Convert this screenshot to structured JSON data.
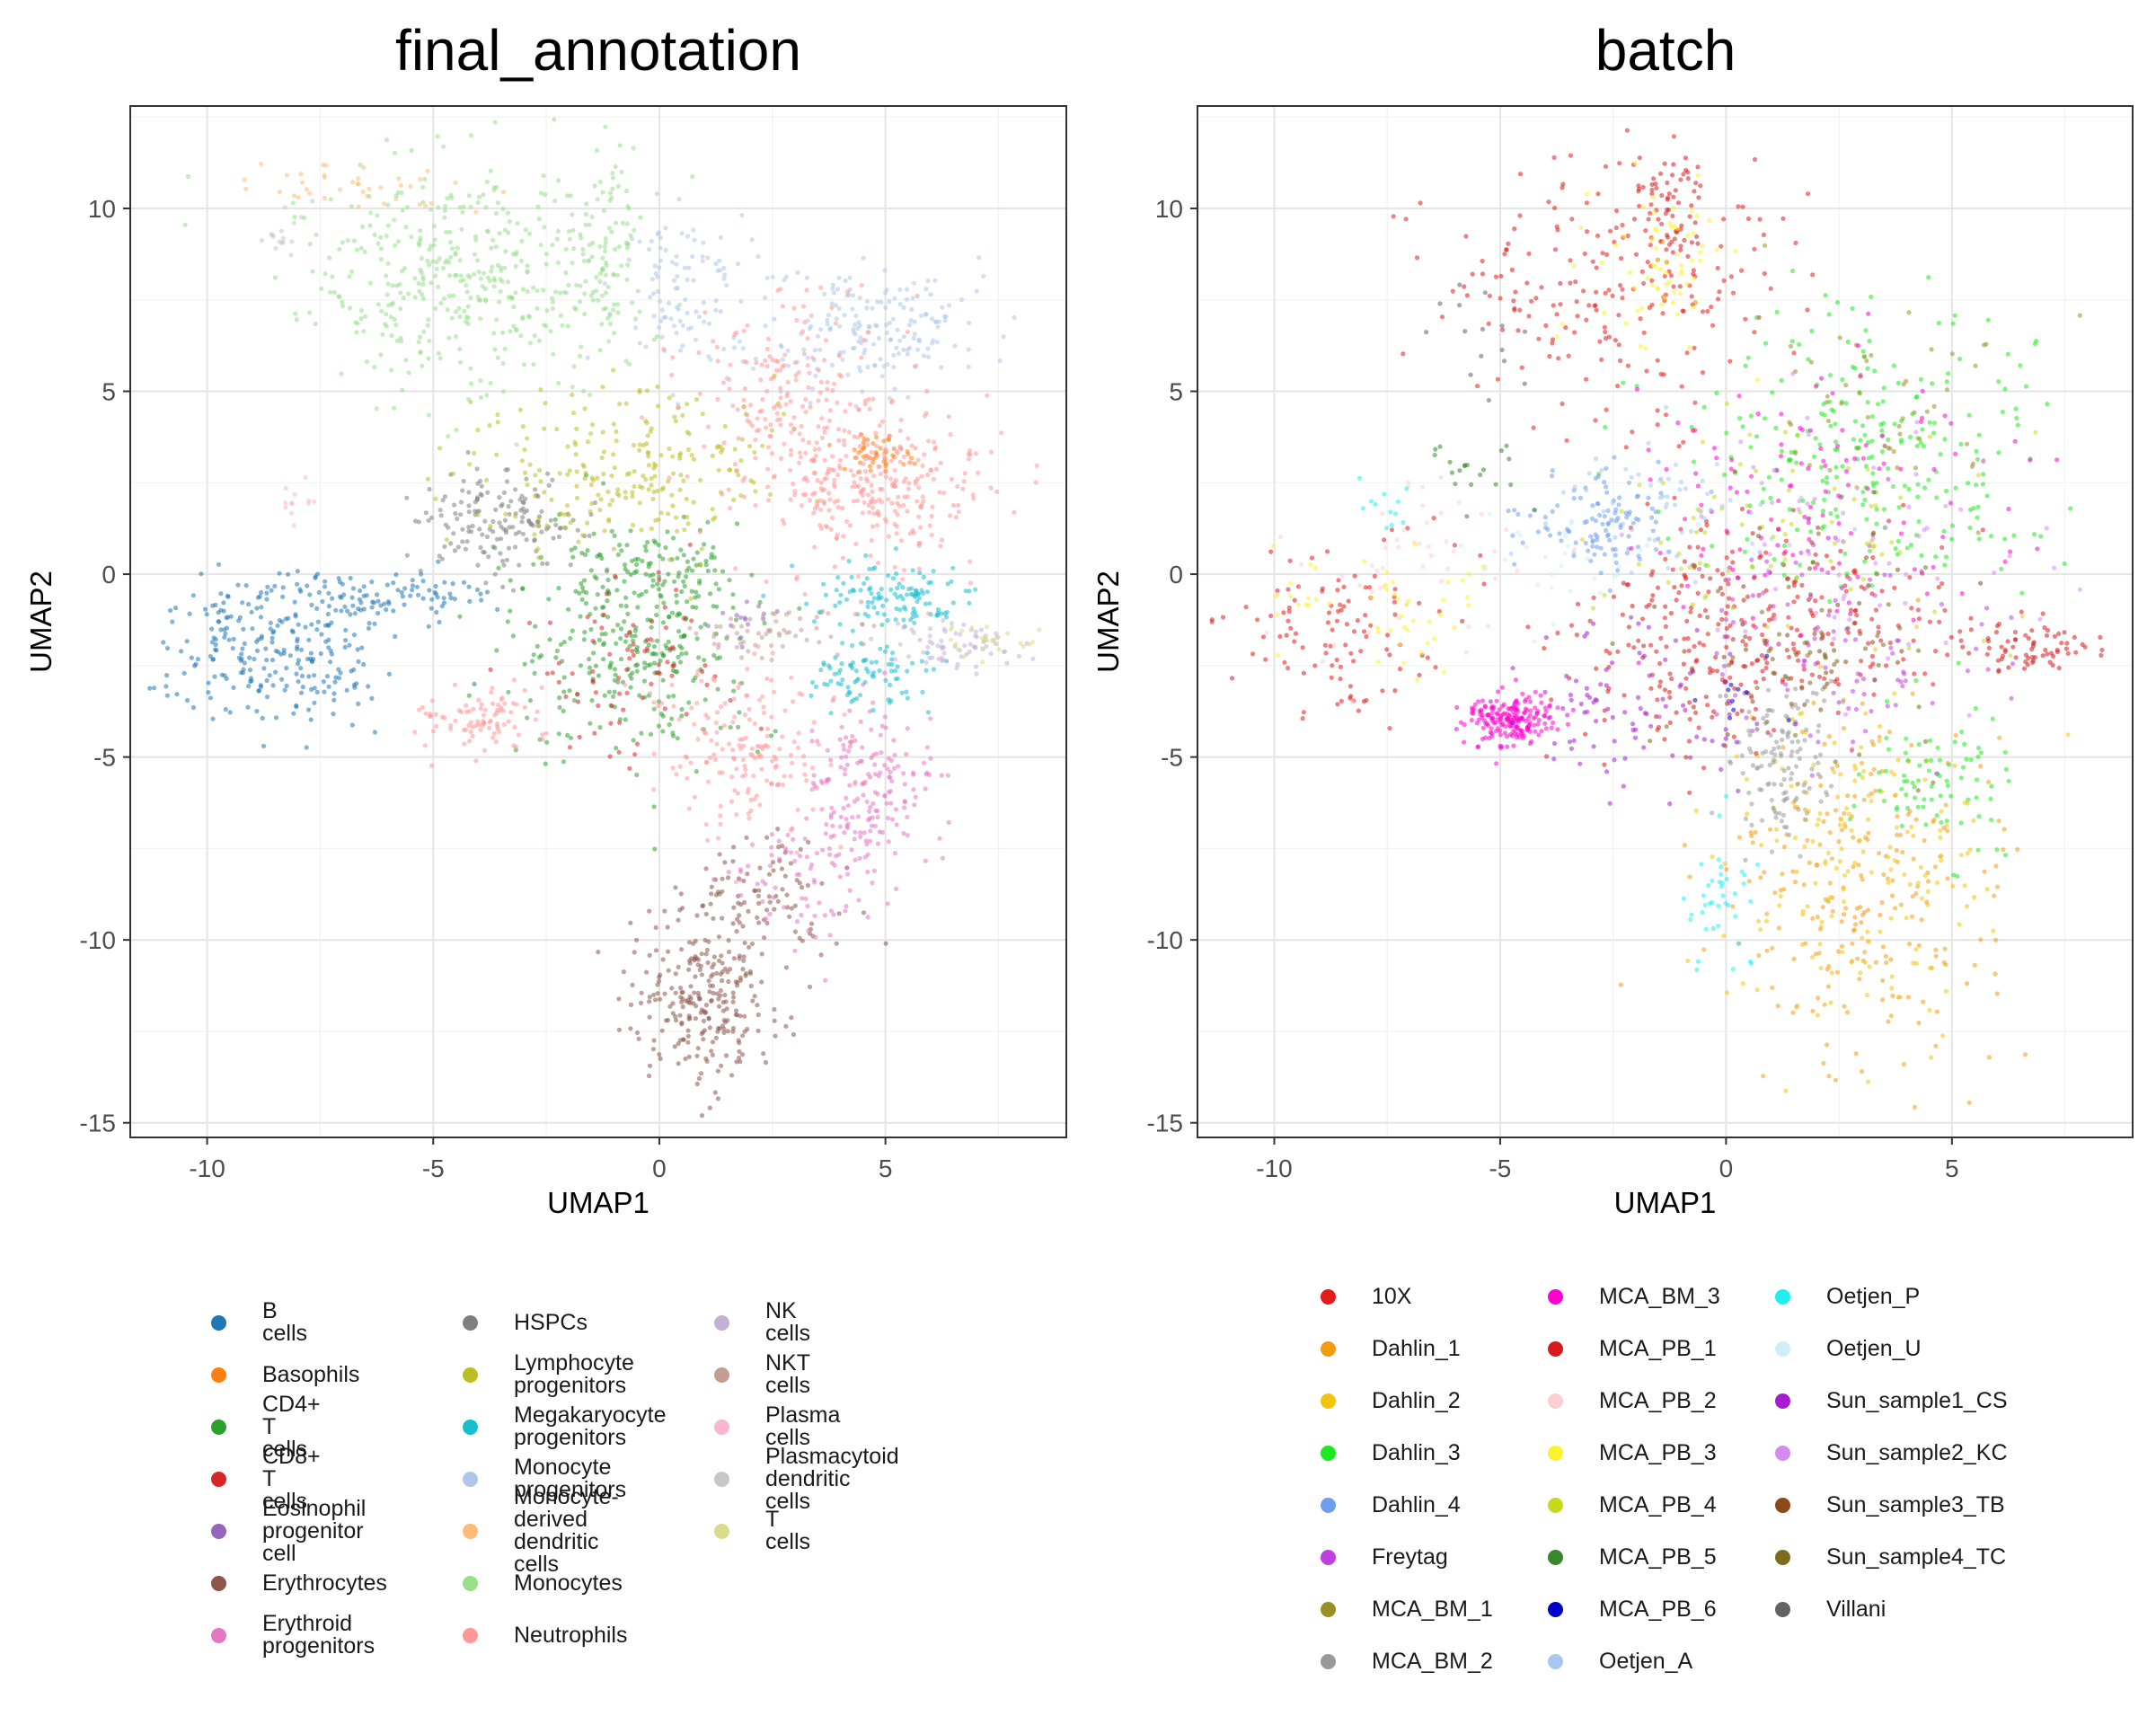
{
  "chart_data": [
    {
      "type": "scatter",
      "title": "final_annotation",
      "xlabel": "UMAP1",
      "ylabel": "UMAP2",
      "xlim": [
        -11.7,
        9.0
      ],
      "ylim": [
        -15.4,
        12.8
      ],
      "xticks": [
        -10,
        -5,
        0,
        5
      ],
      "xtick_labels": [
        "-10",
        "-5",
        "0",
        "5"
      ],
      "yticks": [
        -15,
        -10,
        -5,
        0,
        5,
        10
      ],
      "ytick_labels": [
        "-15",
        "-10",
        "-5",
        "0",
        "5",
        "10"
      ],
      "grid": true,
      "legend_position": "bottom",
      "legend_columns": 3,
      "series": [
        {
          "name": "B cells",
          "color": "#1f77b4",
          "regions": [
            {
              "cx": -8.5,
              "cy": -2.0,
              "sx": 1.2,
              "sy": 1.0,
              "n": 260
            },
            {
              "cx": -5.8,
              "cy": -0.6,
              "sx": 1.1,
              "sy": 0.35,
              "n": 90
            }
          ]
        },
        {
          "name": "Basophils",
          "color": "#ff7f0e",
          "regions": [
            {
              "cx": 4.7,
              "cy": 3.4,
              "sx": 0.35,
              "sy": 0.3,
              "n": 45
            }
          ]
        },
        {
          "name": "CD4+ T cells",
          "color": "#2ca02c",
          "regions": [
            {
              "cx": -0.5,
              "cy": -2.0,
              "sx": 1.4,
              "sy": 1.6,
              "n": 300
            },
            {
              "cx": 0.2,
              "cy": 0.2,
              "sx": 0.9,
              "sy": 0.6,
              "n": 80
            }
          ]
        },
        {
          "name": "CD8+ T cells",
          "color": "#d62728",
          "regions": [
            {
              "cx": -0.6,
              "cy": -2.8,
              "sx": 1.0,
              "sy": 1.2,
              "n": 80
            }
          ]
        },
        {
          "name": "Eosinophil progenitor cell",
          "color": "#9467bd",
          "regions": [
            {
              "cx": 2.0,
              "cy": -1.2,
              "sx": 0.4,
              "sy": 0.3,
              "n": 15
            }
          ]
        },
        {
          "name": "Erythrocytes",
          "color": "#8c564b",
          "regions": [
            {
              "cx": 1.0,
              "cy": -11.5,
              "sx": 0.8,
              "sy": 1.2,
              "n": 260
            },
            {
              "cx": 2.3,
              "cy": -9.0,
              "sx": 0.9,
              "sy": 0.9,
              "n": 90
            }
          ]
        },
        {
          "name": "Erythroid progenitors",
          "color": "#e377c2",
          "regions": [
            {
              "cx": 4.7,
              "cy": -5.7,
              "sx": 0.8,
              "sy": 1.0,
              "n": 160
            },
            {
              "cx": 3.3,
              "cy": -8.2,
              "sx": 0.9,
              "sy": 0.8,
              "n": 90
            }
          ]
        },
        {
          "name": "HSPCs",
          "color": "#7f7f7f",
          "regions": [
            {
              "cx": -3.4,
              "cy": 1.4,
              "sx": 0.9,
              "sy": 0.65,
              "n": 160
            }
          ]
        },
        {
          "name": "Lymphocyte progenitors",
          "color": "#bcbd22",
          "regions": [
            {
              "cx": -0.8,
              "cy": 2.8,
              "sx": 1.6,
              "sy": 1.1,
              "n": 230
            }
          ]
        },
        {
          "name": "Megakaryocyte progenitors",
          "color": "#17becf",
          "regions": [
            {
              "cx": 5.0,
              "cy": -0.6,
              "sx": 0.9,
              "sy": 0.45,
              "n": 120
            },
            {
              "cx": 4.6,
              "cy": -2.8,
              "sx": 0.7,
              "sy": 0.45,
              "n": 80
            }
          ]
        },
        {
          "name": "Monocyte progenitors",
          "color": "#aec7e8",
          "regions": [
            {
              "cx": 4.8,
              "cy": 6.6,
              "sx": 1.2,
              "sy": 0.9,
              "n": 180
            },
            {
              "cx": 0.6,
              "cy": 7.8,
              "sx": 0.9,
              "sy": 1.1,
              "n": 110
            }
          ]
        },
        {
          "name": "Monocyte-derived dendritic cells",
          "color": "#ffbb78",
          "regions": [
            {
              "cx": -6.5,
              "cy": 10.6,
              "sx": 1.2,
              "sy": 0.35,
              "n": 40
            }
          ]
        },
        {
          "name": "Monocytes",
          "color": "#98df8a",
          "regions": [
            {
              "cx": -4.5,
              "cy": 8.2,
              "sx": 1.8,
              "sy": 1.5,
              "n": 400
            },
            {
              "cx": -1.2,
              "cy": 8.8,
              "sx": 0.4,
              "sy": 1.5,
              "n": 90
            }
          ]
        },
        {
          "name": "Neutrophils",
          "color": "#ff9896",
          "regions": [
            {
              "cx": 4.6,
              "cy": 2.4,
              "sx": 1.4,
              "sy": 1.1,
              "n": 320
            },
            {
              "cx": 1.9,
              "cy": -4.6,
              "sx": 1.0,
              "sy": 1.2,
              "n": 170
            },
            {
              "cx": -4.0,
              "cy": -4.0,
              "sx": 0.7,
              "sy": 0.45,
              "n": 90
            },
            {
              "cx": 2.7,
              "cy": 5.0,
              "sx": 1.3,
              "sy": 1.3,
              "n": 150
            }
          ]
        },
        {
          "name": "NK cells",
          "color": "#c5b0d5",
          "regions": [
            {
              "cx": 6.5,
              "cy": -2.0,
              "sx": 0.8,
              "sy": 0.35,
              "n": 70
            }
          ]
        },
        {
          "name": "NKT cells",
          "color": "#c49c94",
          "regions": [
            {
              "cx": 2.5,
              "cy": -1.6,
              "sx": 1.0,
              "sy": 0.35,
              "n": 60
            }
          ]
        },
        {
          "name": "Plasma cells",
          "color": "#f7b6d2",
          "regions": [
            {
              "cx": -8.0,
              "cy": 1.8,
              "sx": 0.25,
              "sy": 0.35,
              "n": 12
            }
          ]
        },
        {
          "name": "Plasmacytoid dendritic cells",
          "color": "#c7c7c7",
          "regions": [
            {
              "cx": -8.3,
              "cy": 9.3,
              "sx": 0.25,
              "sy": 0.3,
              "n": 15
            }
          ]
        },
        {
          "name": "T cells",
          "color": "#dbdb8d",
          "regions": [
            {
              "cx": 7.3,
              "cy": -1.8,
              "sx": 0.5,
              "sy": 0.3,
              "n": 25
            }
          ]
        }
      ]
    },
    {
      "type": "scatter",
      "title": "batch",
      "xlabel": "UMAP1",
      "ylabel": "UMAP2",
      "xlim": [
        -11.7,
        9.0
      ],
      "ylim": [
        -15.4,
        12.8
      ],
      "xticks": [
        -10,
        -5,
        0,
        5
      ],
      "xtick_labels": [
        "-10",
        "-5",
        "0",
        "5"
      ],
      "yticks": [
        -15,
        -10,
        -5,
        0,
        5,
        10
      ],
      "ytick_labels": [
        "-15",
        "-10",
        "-5",
        "0",
        "5",
        "10"
      ],
      "grid": true,
      "legend_position": "bottom",
      "legend_columns": 3,
      "series": [
        {
          "name": "10X",
          "color": "#e41a1c",
          "regions": [
            {
              "cx": -2.5,
              "cy": 7.8,
              "sx": 1.9,
              "sy": 1.8,
              "n": 220
            },
            {
              "cx": 1.5,
              "cy": -1.0,
              "sx": 2.0,
              "sy": 1.3,
              "n": 170
            },
            {
              "cx": -8.4,
              "cy": -1.4,
              "sx": 1.4,
              "sy": 1.2,
              "n": 110
            }
          ]
        },
        {
          "name": "Dahlin_1",
          "color": "#f39c12",
          "regions": [
            {
              "cx": 3.0,
              "cy": -8.5,
              "sx": 1.6,
              "sy": 2.6,
              "n": 230
            }
          ]
        },
        {
          "name": "Dahlin_2",
          "color": "#f1c40f",
          "regions": [
            {
              "cx": 3.0,
              "cy": -8.0,
              "sx": 1.5,
              "sy": 2.2,
              "n": 170
            }
          ]
        },
        {
          "name": "Dahlin_3",
          "color": "#1de91d",
          "regions": [
            {
              "cx": 3.0,
              "cy": 3.4,
              "sx": 2.0,
              "sy": 2.2,
              "n": 260
            },
            {
              "cx": 4.6,
              "cy": -5.5,
              "sx": 0.8,
              "sy": 1.2,
              "n": 80
            }
          ]
        },
        {
          "name": "Dahlin_4",
          "color": "#6d9eeb",
          "regions": [
            {
              "cx": -2.8,
              "cy": 1.4,
              "sx": 0.9,
              "sy": 0.7,
              "n": 110
            }
          ]
        },
        {
          "name": "Freytag",
          "color": "#c13ee0",
          "regions": [
            {
              "cx": 2.2,
              "cy": -1.8,
              "sx": 1.8,
              "sy": 1.6,
              "n": 100
            }
          ]
        },
        {
          "name": "MCA_BM_1",
          "color": "#9a8f24",
          "regions": [
            {
              "cx": 3.5,
              "cy": 5.0,
              "sx": 1.6,
              "sy": 1.5,
              "n": 50
            }
          ]
        },
        {
          "name": "MCA_BM_2",
          "color": "#999999",
          "regions": [
            {
              "cx": 1.3,
              "cy": -5.2,
              "sx": 0.6,
              "sy": 1.2,
              "n": 130
            }
          ]
        },
        {
          "name": "MCA_BM_3",
          "color": "#ff00cc",
          "regions": [
            {
              "cx": -4.7,
              "cy": -4.0,
              "sx": 0.5,
              "sy": 0.35,
              "n": 200
            },
            {
              "cx": 1.8,
              "cy": 2.0,
              "sx": 2.0,
              "sy": 1.8,
              "n": 120
            }
          ]
        },
        {
          "name": "MCA_PB_1",
          "color": "#d7191c",
          "regions": [
            {
              "cx": -0.9,
              "cy": -2.2,
              "sx": 1.4,
              "sy": 1.6,
              "n": 150
            },
            {
              "cx": -1.2,
              "cy": 9.8,
              "sx": 0.35,
              "sy": 1.0,
              "n": 60
            },
            {
              "cx": 6.6,
              "cy": -2.0,
              "sx": 0.8,
              "sy": 0.35,
              "n": 70
            }
          ]
        },
        {
          "name": "MCA_PB_2",
          "color": "#fbcfd1",
          "regions": [
            {
              "cx": -7.0,
              "cy": 0.2,
              "sx": 1.6,
              "sy": 1.4,
              "n": 50
            }
          ]
        },
        {
          "name": "MCA_PB_3",
          "color": "#fcf22b",
          "regions": [
            {
              "cx": -1.5,
              "cy": 8.4,
              "sx": 0.9,
              "sy": 1.2,
              "n": 70
            },
            {
              "cx": -7.6,
              "cy": -1.0,
              "sx": 1.2,
              "sy": 0.8,
              "n": 50
            }
          ]
        },
        {
          "name": "MCA_PB_4",
          "color": "#c8d91c",
          "regions": [
            {
              "cx": 1.0,
              "cy": 1.0,
              "sx": 2.0,
              "sy": 1.6,
              "n": 80
            }
          ]
        },
        {
          "name": "MCA_PB_5",
          "color": "#38872b",
          "regions": [
            {
              "cx": -5.5,
              "cy": 3.0,
              "sx": 0.6,
              "sy": 0.5,
              "n": 20
            }
          ]
        },
        {
          "name": "MCA_PB_6",
          "color": "#0000c8",
          "regions": [
            {
              "cx": 0.5,
              "cy": -3.5,
              "sx": 0.5,
              "sy": 0.5,
              "n": 10
            }
          ]
        },
        {
          "name": "Oetjen_A",
          "color": "#a6c8f0",
          "regions": [
            {
              "cx": -1.5,
              "cy": 1.8,
              "sx": 1.4,
              "sy": 0.9,
              "n": 60
            }
          ]
        },
        {
          "name": "Oetjen_P",
          "color": "#22eef0",
          "regions": [
            {
              "cx": 0.0,
              "cy": -8.5,
              "sx": 0.4,
              "sy": 1.1,
              "n": 40
            },
            {
              "cx": -7.5,
              "cy": 1.6,
              "sx": 0.4,
              "sy": 0.4,
              "n": 12
            }
          ]
        },
        {
          "name": "Oetjen_U",
          "color": "#cdeff8",
          "regions": [
            {
              "cx": -3.5,
              "cy": 0.4,
              "sx": 1.2,
              "sy": 0.8,
              "n": 30
            }
          ]
        },
        {
          "name": "Sun_sample1_CS",
          "color": "#a81bd0",
          "regions": [
            {
              "cx": -2.0,
              "cy": -3.8,
              "sx": 1.3,
              "sy": 1.2,
              "n": 90
            }
          ]
        },
        {
          "name": "Sun_sample2_KC",
          "color": "#d28df0",
          "regions": [
            {
              "cx": 3.0,
              "cy": 0.5,
              "sx": 2.0,
              "sy": 1.8,
              "n": 70
            }
          ]
        },
        {
          "name": "Sun_sample3_TB",
          "color": "#8b4a17",
          "regions": [
            {
              "cx": 1.5,
              "cy": -1.5,
              "sx": 1.6,
              "sy": 1.6,
              "n": 50
            }
          ]
        },
        {
          "name": "Sun_sample4_TC",
          "color": "#7b6b1c",
          "regions": [
            {
              "cx": 2.0,
              "cy": -2.5,
              "sx": 1.8,
              "sy": 1.6,
              "n": 50
            }
          ]
        },
        {
          "name": "Villani",
          "color": "#636363",
          "regions": [
            {
              "cx": -5.5,
              "cy": 6.5,
              "sx": 0.6,
              "sy": 0.8,
              "n": 15
            }
          ]
        }
      ]
    }
  ]
}
